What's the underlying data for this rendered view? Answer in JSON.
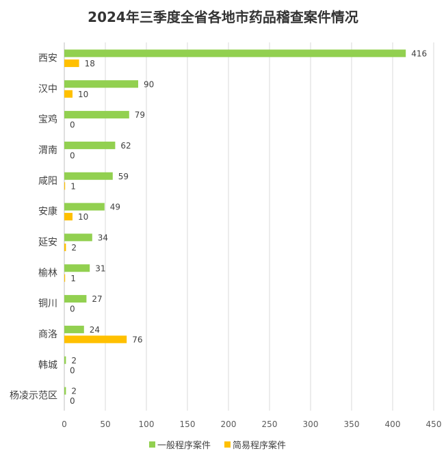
{
  "chart_data": {
    "type": "bar",
    "orientation": "horizontal",
    "title": "2024年三季度全省各地市药品稽查案件情况",
    "categories": [
      "西安",
      "汉中",
      "宝鸡",
      "渭南",
      "咸阳",
      "安康",
      "延安",
      "榆林",
      "铜川",
      "商洛",
      "韩城",
      "杨凌示范区"
    ],
    "series": [
      {
        "name": "一般程序案件",
        "color": "#92D050",
        "values": [
          416,
          90,
          79,
          62,
          59,
          49,
          34,
          31,
          27,
          24,
          2,
          2
        ]
      },
      {
        "name": "简易程序案件",
        "color": "#FFC000",
        "values": [
          18,
          10,
          0,
          0,
          1,
          10,
          2,
          1,
          0,
          76,
          0,
          0
        ]
      }
    ],
    "xlim": [
      0,
      450
    ],
    "xticks": [
      0,
      50,
      100,
      150,
      200,
      250,
      300,
      350,
      400,
      450
    ],
    "grid": true,
    "legend_position": "bottom"
  }
}
